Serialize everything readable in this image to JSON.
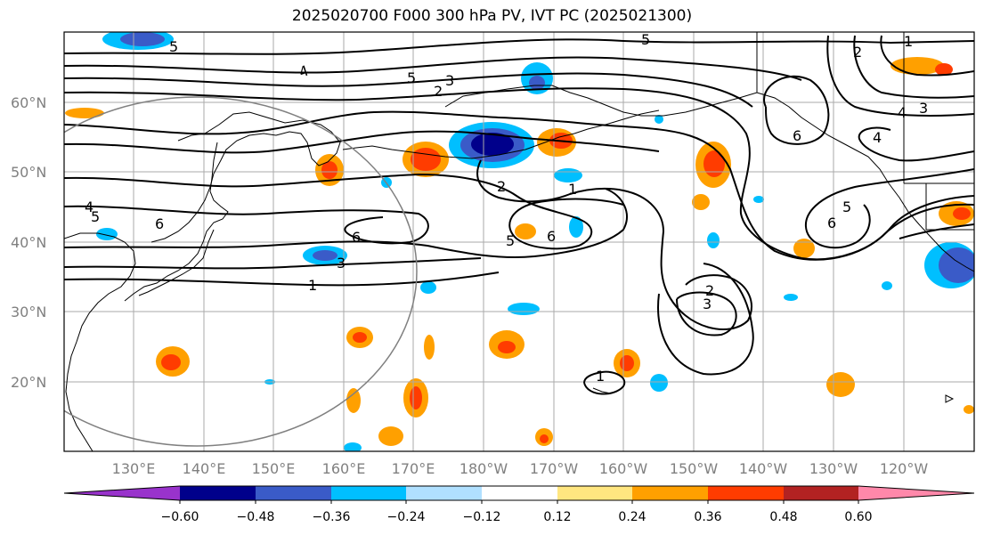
{
  "title": "2025020700 F000 300 hPa PV, IVT PC (2025021300)",
  "lat_labels": [
    "60°N",
    "50°N",
    "40°N",
    "30°N",
    "20°N"
  ],
  "lon_labels": [
    "130°E",
    "140°E",
    "150°E",
    "160°E",
    "170°E",
    "180°W",
    "170°W",
    "160°W",
    "150°W",
    "140°W",
    "130°W",
    "120°W"
  ],
  "contour_labels": [
    "5",
    "4",
    "5",
    "2",
    "3",
    "5",
    "2",
    "1",
    "4",
    "3",
    "6",
    "4",
    "4",
    "5",
    "6",
    "6",
    "3",
    "1",
    "2",
    "1",
    "5",
    "6",
    "2",
    "3",
    "6",
    "5",
    "1"
  ],
  "colorbar": {
    "ticks": [
      "−0.60",
      "−0.48",
      "−0.36",
      "−0.24",
      "−0.12",
      "0.12",
      "0.24",
      "0.36",
      "0.48",
      "0.60"
    ],
    "colors": [
      "#9933cc",
      "#00008b",
      "#3a5bc8",
      "#00bfff",
      "#b0e0ff",
      "#ffffff",
      "#ffe680",
      "#ffa000",
      "#ff3c00",
      "#b22222",
      "#ff88aa"
    ]
  },
  "colors": {
    "contour": "#000000",
    "grid": "#aaaaaa",
    "coast": "#000000",
    "circle": "#808080"
  }
}
